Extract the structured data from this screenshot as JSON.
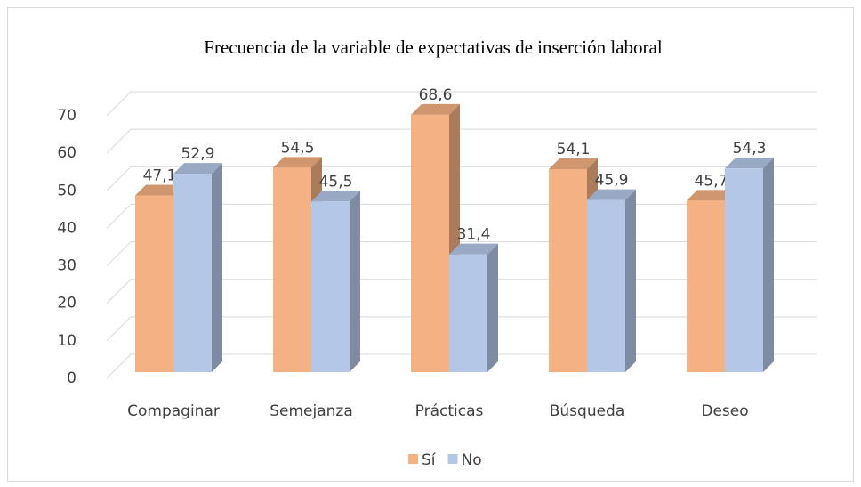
{
  "chart_data": {
    "type": "bar3d",
    "title": "Frecuencia de la variable de expectativas de inserción laboral",
    "categories": [
      "Compaginar",
      "Semejanza",
      "Prácticas",
      "Búsqueda",
      "Deseo"
    ],
    "series": [
      {
        "name": "Sí",
        "color": "#f4b183",
        "values": [
          47.1,
          54.5,
          68.6,
          54.1,
          45.7
        ],
        "value_labels": [
          "47,1",
          "54,5",
          "68,6",
          "54,1",
          "45,7"
        ]
      },
      {
        "name": "No",
        "color": "#b4c7e7",
        "values": [
          52.9,
          45.5,
          31.4,
          45.9,
          54.3
        ],
        "value_labels": [
          "52,9",
          "45,5",
          "31,4",
          "45,9",
          "54,3"
        ]
      }
    ],
    "ylim": [
      0,
      70
    ],
    "yticks": [
      0,
      10,
      20,
      30,
      40,
      50,
      60,
      70
    ],
    "grid": true,
    "legend": "bottom"
  }
}
